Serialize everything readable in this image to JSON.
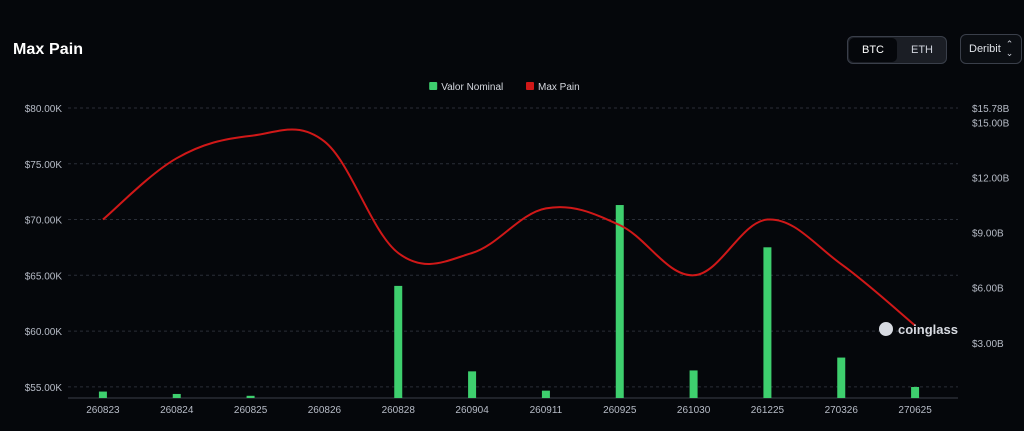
{
  "header": {
    "title": "Max Pain"
  },
  "asset_toggle": {
    "options": [
      "BTC",
      "ETH"
    ],
    "selected": "BTC"
  },
  "exchange_select": {
    "value": "Deribit"
  },
  "watermark": {
    "text": "coinglass"
  },
  "chart_data": {
    "type": "bar+line",
    "categories": [
      "260823",
      "260824",
      "260825",
      "260826",
      "260828",
      "260904",
      "260911",
      "260925",
      "261030",
      "261225",
      "270326",
      "270625"
    ],
    "series": [
      {
        "name": "Valor Nominal",
        "type": "bar",
        "axis": "right",
        "color": "#3ecf6e",
        "values": [
          0.35,
          0.22,
          0.12,
          0,
          6.1,
          1.45,
          0.4,
          10.5,
          1.5,
          8.2,
          2.2,
          0.6
        ]
      },
      {
        "name": "Max Pain",
        "type": "line",
        "axis": "left",
        "color": "#d01818",
        "values": [
          70000,
          75500,
          77500,
          77000,
          67000,
          67000,
          71000,
          69500,
          65000,
          70000,
          66000,
          60500
        ]
      }
    ],
    "y_left": {
      "min": 54000,
      "max": 80000,
      "ticks": [
        "$80.00K",
        "$75.00K",
        "$70.00K",
        "$65.00K",
        "$60.00K",
        "$55.00K"
      ],
      "tick_values": [
        80000,
        75000,
        70000,
        65000,
        60000,
        55000
      ]
    },
    "y_right": {
      "min": 0,
      "max": 15.78,
      "ticks": [
        "$15.78B",
        "$15.00B",
        "$12.00B",
        "$9.00B",
        "$6.00B",
        "$3.00B"
      ],
      "tick_values": [
        15.78,
        15,
        12,
        9,
        6,
        3
      ]
    },
    "legend_position": "top-center",
    "grid": true
  }
}
